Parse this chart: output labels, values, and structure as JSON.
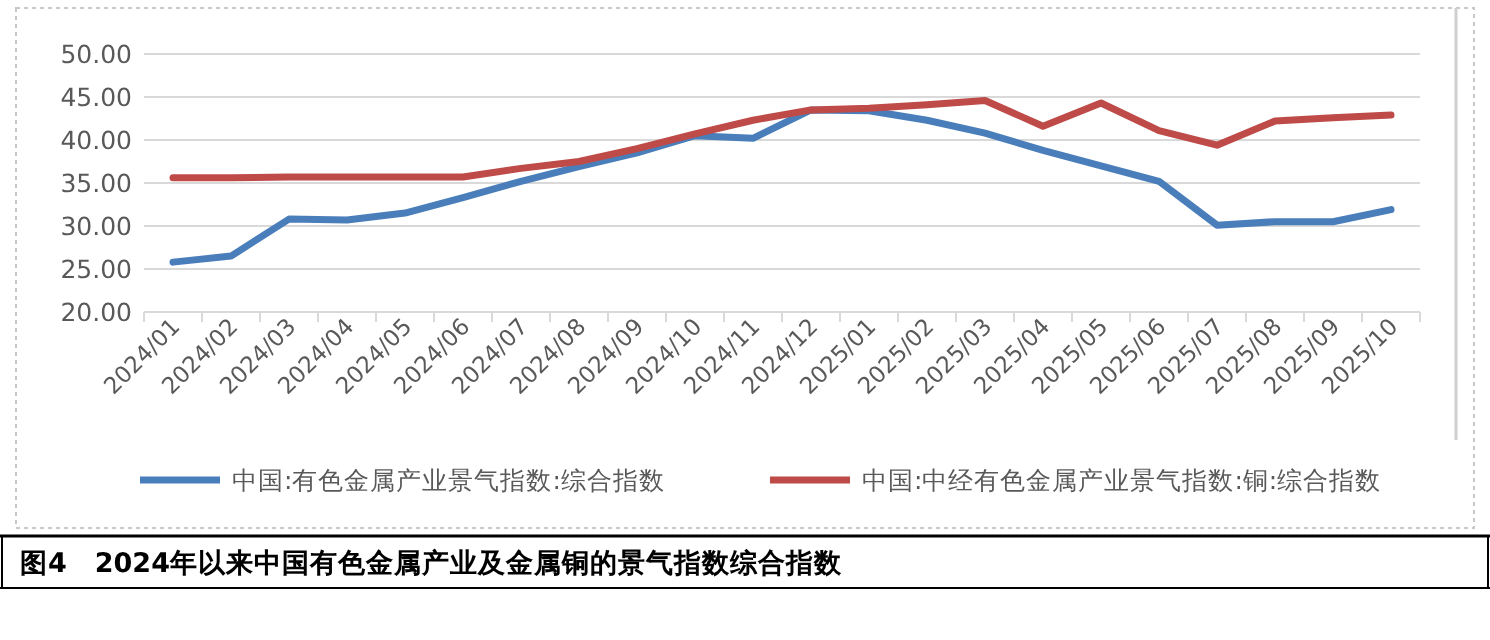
{
  "chart_data": {
    "type": "line",
    "title": "图4　2024年以来中国有色金属产业及金属铜的景气指数综合指数",
    "categories": [
      "2024/01",
      "2024/02",
      "2024/03",
      "2024/04",
      "2024/05",
      "2024/06",
      "2024/07",
      "2024/08",
      "2024/09",
      "2024/10",
      "2024/11",
      "2024/12",
      "2025/01",
      "2025/02",
      "2025/03",
      "2025/04",
      "2025/05",
      "2025/06",
      "2025/07",
      "2025/08",
      "2025/09",
      "2025/10"
    ],
    "series": [
      {
        "name": "中国:有色金属产业景气指数:综合指数",
        "color": "#4a7ebb",
        "values": [
          25.8,
          26.5,
          30.8,
          30.7,
          31.5,
          33.3,
          35.2,
          36.9,
          38.5,
          40.5,
          40.2,
          43.5,
          43.4,
          42.3,
          40.8,
          38.8,
          37.0,
          35.2,
          30.1,
          30.5,
          30.5,
          31.9
        ]
      },
      {
        "name": "中国:中经有色金属产业景气指数:铜:综合指数",
        "color": "#be4b48",
        "values": [
          35.6,
          35.6,
          35.7,
          35.7,
          35.7,
          35.7,
          36.7,
          37.5,
          39.0,
          40.7,
          42.3,
          43.5,
          43.7,
          44.1,
          44.6,
          41.6,
          44.3,
          41.1,
          39.4,
          42.2,
          42.6,
          42.9
        ]
      }
    ],
    "ylim": [
      20,
      50
    ],
    "yticks": [
      {
        "value": 20,
        "label": "20.00"
      },
      {
        "value": 25,
        "label": "25.00"
      },
      {
        "value": 30,
        "label": "30.00"
      },
      {
        "value": 35,
        "label": "35.00"
      },
      {
        "value": 40,
        "label": "40.00"
      },
      {
        "value": 45,
        "label": "45.00"
      },
      {
        "value": 50,
        "label": "50.00"
      }
    ],
    "grid": "y",
    "legend": "bottom",
    "marker": "none",
    "line_style": "solid"
  }
}
